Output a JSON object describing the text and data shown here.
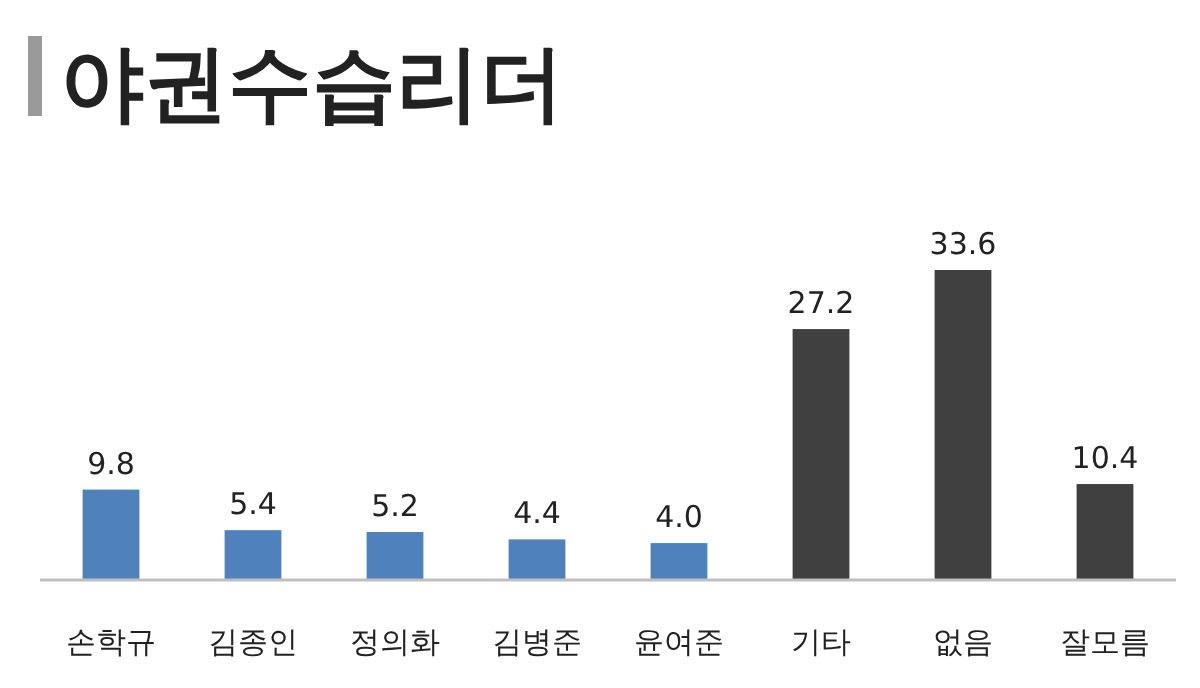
{
  "chart_data": {
    "type": "bar",
    "title": "야권수습리더",
    "categories": [
      "손학규",
      "김종인",
      "정의화",
      "김병준",
      "윤여준",
      "기타",
      "없음",
      "잘모름"
    ],
    "values": [
      9.8,
      5.4,
      5.2,
      4.4,
      4.0,
      27.2,
      33.6,
      10.4
    ],
    "value_labels": [
      "9.8",
      "5.4",
      "5.2",
      "4.4",
      "4.0",
      "27.2",
      "33.6",
      "10.4"
    ],
    "colors": [
      "#4f81bd",
      "#4f81bd",
      "#4f81bd",
      "#4f81bd",
      "#4f81bd",
      "#404040",
      "#404040",
      "#404040"
    ]
  }
}
